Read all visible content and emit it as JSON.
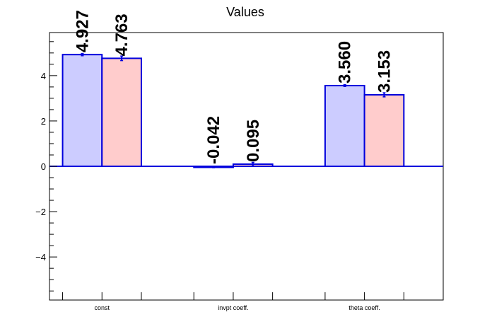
{
  "chart_data": {
    "type": "bar",
    "title": "Values",
    "xlabel": "",
    "ylabel": "",
    "categories": [
      "const",
      "invpt coeff.",
      "theta coeff."
    ],
    "ylim": [
      -5.9,
      5.9
    ],
    "yticks": [
      -4,
      -2,
      0,
      2,
      4
    ],
    "grid": false,
    "series": [
      {
        "values": [
          4.927,
          -0.042,
          3.56
        ],
        "labels": [
          "4.927",
          "-0.042",
          "3.560"
        ],
        "errors": [
          0.05,
          0.02,
          0.04
        ],
        "fill": "#ccccff",
        "stroke": "#0000dd"
      },
      {
        "values": [
          4.763,
          0.095,
          3.153
        ],
        "labels": [
          "4.763",
          "0.095",
          "3.153"
        ],
        "errors": [
          0.1,
          0.08,
          0.09
        ],
        "fill": "#ffcccc",
        "stroke": "#0000dd"
      }
    ]
  }
}
